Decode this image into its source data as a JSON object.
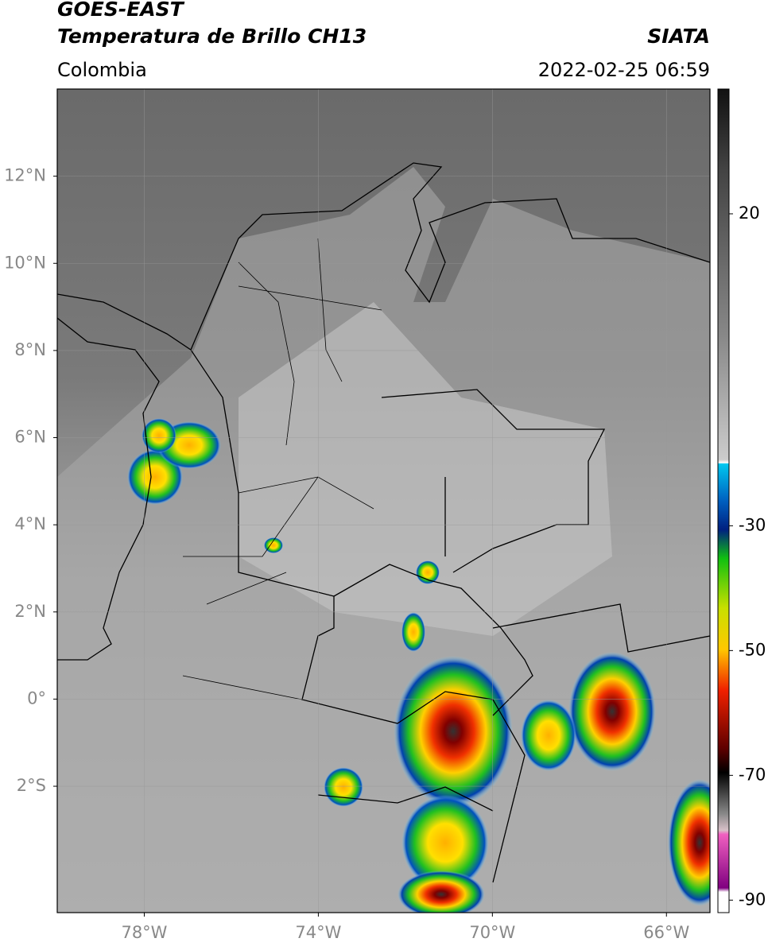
{
  "header": {
    "title_line1": "GOES-EAST",
    "title_line2": "Temperatura de Brillo CH13",
    "source": "SIATA",
    "region": "Colombia",
    "datetime": "2022-02-25 06:59"
  },
  "map": {
    "xlim": [
      -80,
      -65
    ],
    "ylim": [
      -4.9,
      14
    ],
    "xticks": [
      {
        "value": -78,
        "label": "78°W"
      },
      {
        "value": -74,
        "label": "74°W"
      },
      {
        "value": -70,
        "label": "70°W"
      },
      {
        "value": -66,
        "label": "66°W"
      }
    ],
    "yticks": [
      {
        "value": 12,
        "label": "12°N"
      },
      {
        "value": 10,
        "label": "10°N"
      },
      {
        "value": 8,
        "label": "8°N"
      },
      {
        "value": 6,
        "label": "6°N"
      },
      {
        "value": 4,
        "label": "4°N"
      },
      {
        "value": 2,
        "label": "2°N"
      },
      {
        "value": 0,
        "label": "0°"
      },
      {
        "value": -2,
        "label": "2°S"
      }
    ],
    "grid": true
  },
  "colorbar": {
    "lim": [
      -92,
      40
    ],
    "ticks": [
      20,
      -30,
      -50,
      -70,
      -90
    ]
  }
}
